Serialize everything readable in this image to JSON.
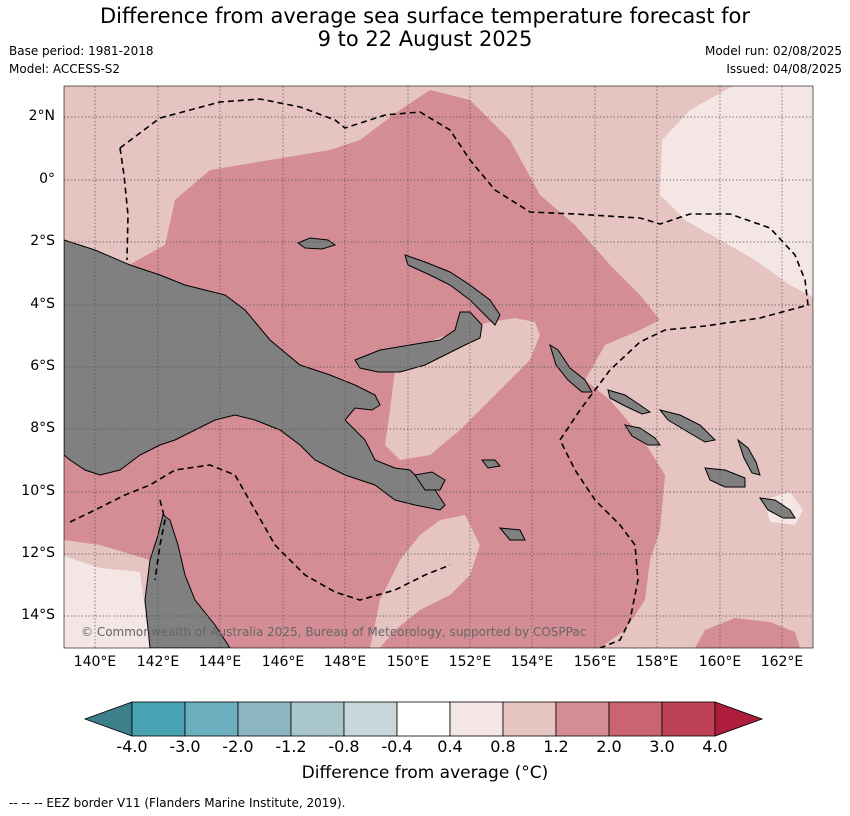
{
  "title_line1": "Difference from average sea surface temperature forecast for",
  "title_line2": "9 to 22 August 2025",
  "meta": {
    "base_period": "Base period: 1981-2018",
    "model": "Model: ACCESS-S2",
    "model_run": "Model run: 02/08/2025",
    "issued": "Issued: 04/08/2025"
  },
  "map": {
    "lat_ticks": [
      "2°N",
      "0°",
      "2°S",
      "4°S",
      "6°S",
      "8°S",
      "10°S",
      "12°S",
      "14°S"
    ],
    "lon_ticks": [
      "140°E",
      "142°E",
      "144°E",
      "146°E",
      "148°E",
      "150°E",
      "152°E",
      "154°E",
      "156°E",
      "158°E",
      "160°E",
      "162°E"
    ],
    "copyright": "© Commonwealth of Australia 2025, Bureau of Meteorology, supported by COSPPac",
    "land_color": "#808080",
    "anomaly_colors": {
      "0.4-0.8": "#f4e6e4",
      "0.8-1.2": "#e6c4c1",
      "1.2-2.0": "#d48d94"
    }
  },
  "colorbar": {
    "labels": [
      "-4.0",
      "-3.0",
      "-2.0",
      "-1.2",
      "-0.8",
      "-0.4",
      "0.4",
      "0.8",
      "1.2",
      "2.0",
      "3.0",
      "4.0"
    ],
    "colors": [
      "#3d7f8a",
      "#4aa3b3",
      "#6cafbf",
      "#8bb5c0",
      "#a9c6cb",
      "#c9d7dc",
      "#ffffff",
      "#f4e6e4",
      "#e6c4c1",
      "#d48d94",
      "#c96470",
      "#bd4255",
      "#ae1e3c"
    ],
    "title": "Difference from average (°C)"
  },
  "footer": "-- -- -- EEZ border V11 (Flanders Marine Institute, 2019)."
}
